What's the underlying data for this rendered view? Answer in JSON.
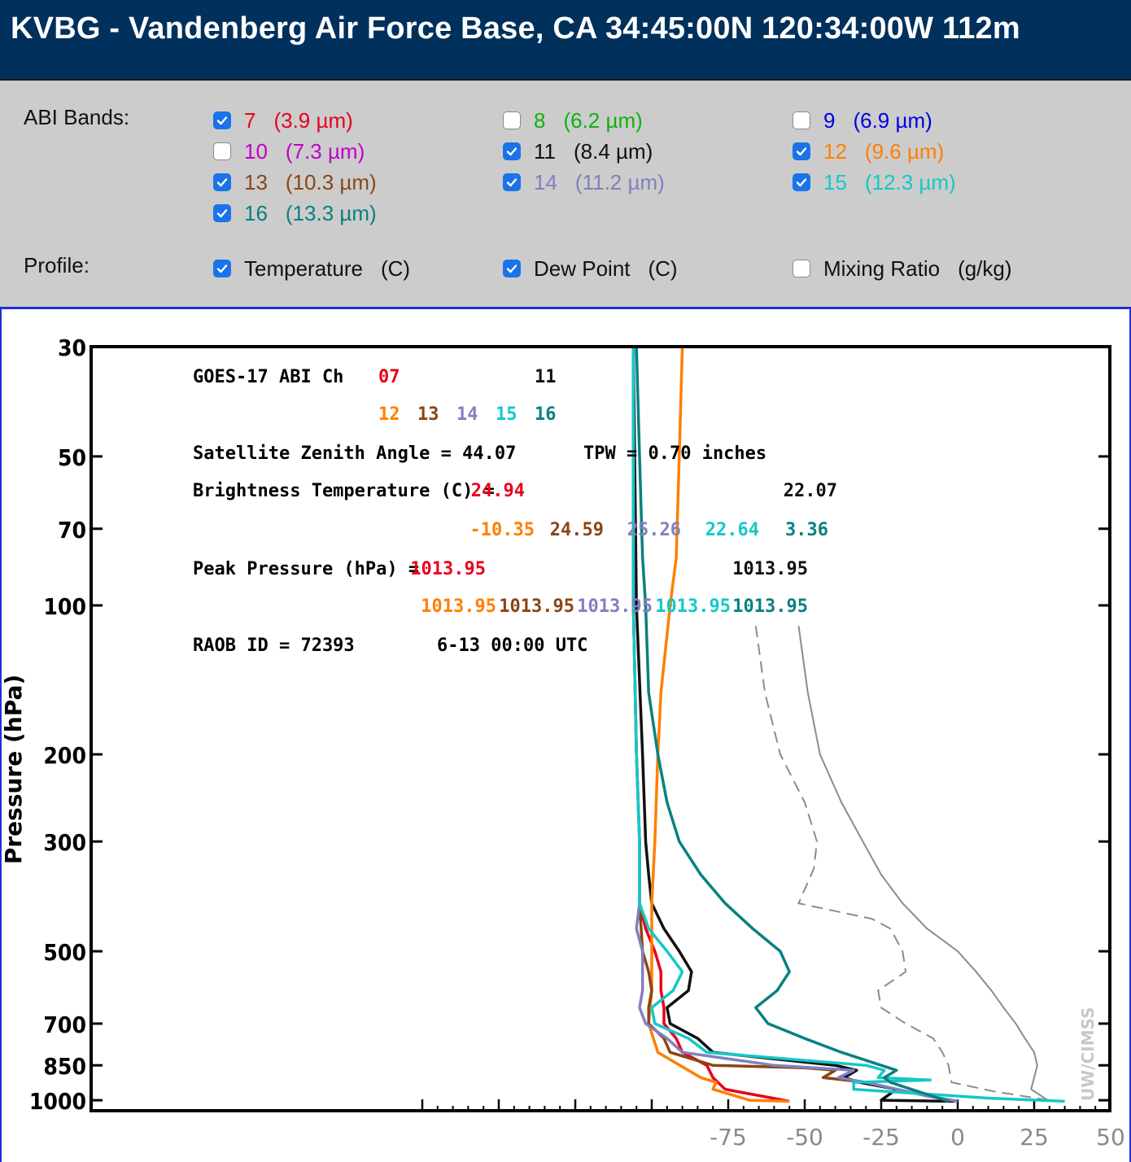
{
  "header": {
    "title": "KVBG - Vandenberg Air Force Base, CA 34:45:00N 120:34:00W 112m"
  },
  "controls": {
    "bands_label": "ABI Bands:",
    "profile_label": "Profile:",
    "bands": [
      {
        "num": "7",
        "wl": "(3.9 µm)",
        "checked": true,
        "color": "#e8001c"
      },
      {
        "num": "8",
        "wl": "(6.2 µm)",
        "checked": false,
        "color": "#10b010"
      },
      {
        "num": "9",
        "wl": "(6.9 µm)",
        "checked": false,
        "color": "#0000e0"
      },
      {
        "num": "10",
        "wl": "(7.3 µm)",
        "checked": false,
        "color": "#c000c8"
      },
      {
        "num": "11",
        "wl": "(8.4 µm)",
        "checked": true,
        "color": "#111111"
      },
      {
        "num": "12",
        "wl": "(9.6 µm)",
        "checked": true,
        "color": "#ff7f00"
      },
      {
        "num": "13",
        "wl": "(10.3 µm)",
        "checked": true,
        "color": "#8b4513"
      },
      {
        "num": "14",
        "wl": "(11.2 µm)",
        "checked": true,
        "color": "#8080c0"
      },
      {
        "num": "15",
        "wl": "(12.3 µm)",
        "checked": true,
        "color": "#14c8c8"
      },
      {
        "num": "16",
        "wl": "(13.3 µm)",
        "checked": true,
        "color": "#0a8080"
      }
    ],
    "profiles": [
      {
        "label": "Temperature",
        "unit": "(C)",
        "checked": true
      },
      {
        "label": "Dew Point",
        "unit": "(C)",
        "checked": true
      },
      {
        "label": "Mixing Ratio",
        "unit": "(g/kg)",
        "checked": false
      }
    ]
  },
  "plot": {
    "ylabel": "Pressure (hPa)",
    "pressure_ticks": [
      "30",
      "50",
      "70",
      "100",
      "200",
      "300",
      "500",
      "700",
      "850",
      "1000"
    ],
    "pressure_values": [
      30,
      50,
      70,
      100,
      200,
      300,
      500,
      700,
      850,
      1000
    ],
    "temp_ticks": [
      "-75",
      "-50",
      "-25",
      "0",
      "25",
      "50"
    ],
    "temp_values": [
      -75,
      -50,
      -25,
      0,
      25,
      50
    ],
    "watermark": "UW/CIMSS",
    "info": {
      "line1_label": "GOES-17 ABI  Ch",
      "ch_row1": [
        {
          "t": "07",
          "c": "#e8001c"
        },
        {
          "t": "11",
          "c": "#111111"
        }
      ],
      "ch_row2": [
        {
          "t": "12",
          "c": "#ff7f00"
        },
        {
          "t": "13",
          "c": "#8b4513"
        },
        {
          "t": "14",
          "c": "#8080c0"
        },
        {
          "t": "15",
          "c": "#14c8c8"
        },
        {
          "t": "16",
          "c": "#0a8080"
        }
      ],
      "zenith": "Satellite Zenith Angle = 44.07",
      "tpw": "TPW = 0.70 inches",
      "bt_label": "Brightness Temperature (C) =",
      "bt_row1": [
        {
          "t": "24.94",
          "c": "#e8001c"
        },
        {
          "t": "22.07",
          "c": "#111111"
        }
      ],
      "bt_row2": [
        {
          "t": "-10.35",
          "c": "#ff7f00"
        },
        {
          "t": "24.59",
          "c": "#8b4513"
        },
        {
          "t": "25.26",
          "c": "#8080c0"
        },
        {
          "t": "22.64",
          "c": "#14c8c8"
        },
        {
          "t": "3.36",
          "c": "#0a8080"
        }
      ],
      "pp_label": "Peak Pressure (hPa) =",
      "pp_row1": [
        {
          "t": "1013.95",
          "c": "#e8001c"
        },
        {
          "t": "1013.95",
          "c": "#111111"
        }
      ],
      "pp_row2": [
        {
          "t": "1013.95",
          "c": "#ff7f00"
        },
        {
          "t": "1013.95",
          "c": "#8b4513"
        },
        {
          "t": "1013.95",
          "c": "#8080c0"
        },
        {
          "t": "1013.95",
          "c": "#14c8c8"
        },
        {
          "t": "1013.95",
          "c": "#0a8080"
        }
      ],
      "raob": "RAOB ID = 72393",
      "time": "6-13 00:00 UTC"
    }
  },
  "chart_data": {
    "type": "line",
    "title": "",
    "xlabel": "",
    "ylabel": "Pressure (hPa)",
    "y_scale": "log",
    "xlim": [
      -110,
      50
    ],
    "ylim": [
      30,
      1050
    ],
    "temperature_profile": [
      [
        -52,
        110
      ],
      [
        -49,
        150
      ],
      [
        -45,
        200
      ],
      [
        -38,
        250
      ],
      [
        -31,
        300
      ],
      [
        -25,
        350
      ],
      [
        -18,
        400
      ],
      [
        -10,
        450
      ],
      [
        0,
        500
      ],
      [
        6,
        550
      ],
      [
        11,
        600
      ],
      [
        15,
        650
      ],
      [
        19,
        700
      ],
      [
        22,
        750
      ],
      [
        25,
        800
      ],
      [
        26,
        850
      ],
      [
        25,
        900
      ],
      [
        24,
        950
      ],
      [
        30,
        1005
      ]
    ],
    "dewpoint_profile": [
      [
        -66,
        110
      ],
      [
        -63,
        150
      ],
      [
        -58,
        200
      ],
      [
        -50,
        250
      ],
      [
        -46,
        300
      ],
      [
        -47,
        340
      ],
      [
        -52,
        400
      ],
      [
        -28,
        430
      ],
      [
        -22,
        450
      ],
      [
        -18,
        500
      ],
      [
        -17,
        550
      ],
      [
        -26,
        600
      ],
      [
        -25,
        650
      ],
      [
        -17,
        700
      ],
      [
        -8,
        750
      ],
      [
        -5,
        800
      ],
      [
        -3,
        850
      ],
      [
        -2,
        920
      ],
      [
        12,
        960
      ],
      [
        32,
        1005
      ]
    ],
    "series": [
      {
        "name": "07",
        "color": "#e8001c",
        "points": [
          [
            -106,
            30
          ],
          [
            -106,
            100
          ],
          [
            -105,
            200
          ],
          [
            -104,
            300
          ],
          [
            -104,
            400
          ],
          [
            -102,
            450
          ],
          [
            -99,
            500
          ],
          [
            -97,
            550
          ],
          [
            -97,
            600
          ],
          [
            -96,
            650
          ],
          [
            -96,
            700
          ],
          [
            -92,
            750
          ],
          [
            -90,
            800
          ],
          [
            -82,
            850
          ],
          [
            -80,
            900
          ],
          [
            -76,
            950
          ],
          [
            -55,
            1005
          ]
        ]
      },
      {
        "name": "11",
        "color": "#111111",
        "points": [
          [
            -106,
            30
          ],
          [
            -105,
            100
          ],
          [
            -103,
            200
          ],
          [
            -102,
            300
          ],
          [
            -101,
            350
          ],
          [
            -100,
            400
          ],
          [
            -96,
            450
          ],
          [
            -91,
            500
          ],
          [
            -87,
            550
          ],
          [
            -88,
            600
          ],
          [
            -95,
            650
          ],
          [
            -94,
            700
          ],
          [
            -85,
            750
          ],
          [
            -80,
            800
          ],
          [
            -40,
            850
          ],
          [
            -33,
            870
          ],
          [
            -37,
            900
          ],
          [
            -32,
            920
          ],
          [
            -20,
            950
          ],
          [
            -25,
            1000
          ],
          [
            -1,
            1005
          ]
        ]
      },
      {
        "name": "12",
        "color": "#ff7f00",
        "points": [
          [
            -90,
            30
          ],
          [
            -91,
            50
          ],
          [
            -92,
            80
          ],
          [
            -94,
            100
          ],
          [
            -97,
            150
          ],
          [
            -98,
            200
          ],
          [
            -99,
            300
          ],
          [
            -100,
            400
          ],
          [
            -100,
            500
          ],
          [
            -100,
            600
          ],
          [
            -101,
            700
          ],
          [
            -98,
            800
          ],
          [
            -84,
            900
          ],
          [
            -79,
            920
          ],
          [
            -80,
            950
          ],
          [
            -68,
            1000
          ],
          [
            -55,
            1005
          ]
        ]
      },
      {
        "name": "13",
        "color": "#8b4513",
        "points": [
          [
            -106,
            30
          ],
          [
            -106,
            100
          ],
          [
            -105,
            200
          ],
          [
            -104,
            300
          ],
          [
            -104,
            400
          ],
          [
            -103,
            500
          ],
          [
            -101,
            550
          ],
          [
            -100,
            600
          ],
          [
            -101,
            650
          ],
          [
            -101,
            700
          ],
          [
            -96,
            750
          ],
          [
            -94,
            800
          ],
          [
            -80,
            850
          ],
          [
            -50,
            860
          ],
          [
            -40,
            870
          ],
          [
            -44,
            900
          ],
          [
            -30,
            920
          ],
          [
            -20,
            950
          ],
          [
            -10,
            980
          ],
          [
            0,
            1005
          ]
        ]
      },
      {
        "name": "14",
        "color": "#8080c0",
        "points": [
          [
            -106,
            30
          ],
          [
            -106,
            100
          ],
          [
            -105,
            200
          ],
          [
            -104,
            300
          ],
          [
            -104,
            400
          ],
          [
            -105,
            450
          ],
          [
            -103,
            500
          ],
          [
            -103,
            600
          ],
          [
            -104,
            650
          ],
          [
            -102,
            700
          ],
          [
            -95,
            750
          ],
          [
            -90,
            800
          ],
          [
            -60,
            850
          ],
          [
            -34,
            870
          ],
          [
            -39,
            900
          ],
          [
            -30,
            920
          ],
          [
            -20,
            950
          ],
          [
            -10,
            980
          ],
          [
            0,
            1005
          ]
        ]
      },
      {
        "name": "15",
        "color": "#14c8c8",
        "points": [
          [
            -106,
            30
          ],
          [
            -106,
            100
          ],
          [
            -105,
            200
          ],
          [
            -104,
            300
          ],
          [
            -104,
            400
          ],
          [
            -101,
            450
          ],
          [
            -95,
            500
          ],
          [
            -90,
            550
          ],
          [
            -93,
            600
          ],
          [
            -100,
            650
          ],
          [
            -99,
            700
          ],
          [
            -88,
            750
          ],
          [
            -82,
            800
          ],
          [
            -30,
            850
          ],
          [
            -24,
            870
          ],
          [
            -26,
            900
          ],
          [
            -9,
            910
          ],
          [
            -34,
            920
          ],
          [
            -34,
            950
          ],
          [
            10,
            990
          ],
          [
            35,
            1005
          ]
        ]
      },
      {
        "name": "16",
        "color": "#0a8080",
        "points": [
          [
            -105,
            30
          ],
          [
            -104,
            50
          ],
          [
            -103,
            80
          ],
          [
            -102,
            100
          ],
          [
            -101,
            150
          ],
          [
            -98,
            200
          ],
          [
            -95,
            250
          ],
          [
            -91,
            300
          ],
          [
            -84,
            350
          ],
          [
            -76,
            400
          ],
          [
            -67,
            450
          ],
          [
            -58,
            500
          ],
          [
            -55,
            550
          ],
          [
            -59,
            600
          ],
          [
            -66,
            650
          ],
          [
            -62,
            700
          ],
          [
            -50,
            750
          ],
          [
            -38,
            800
          ],
          [
            -25,
            850
          ],
          [
            -20,
            870
          ],
          [
            -24,
            900
          ],
          [
            -22,
            920
          ],
          [
            -13,
            960
          ],
          [
            -3,
            1005
          ]
        ]
      }
    ]
  }
}
